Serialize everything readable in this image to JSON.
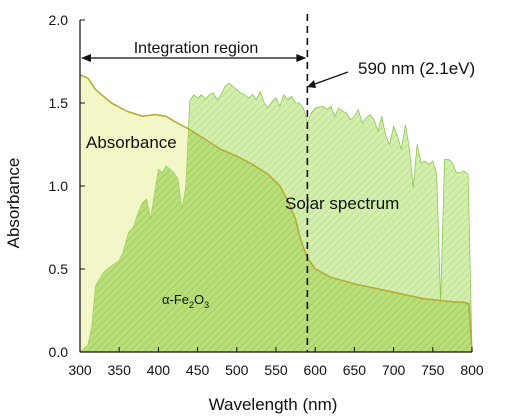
{
  "chart_data": {
    "type": "area",
    "xlabel": "Wavelength (nm)",
    "ylabel": "Absorbance",
    "xlim": [
      300,
      800
    ],
    "ylim": [
      0,
      2.0
    ],
    "x_ticks": [
      300,
      350,
      400,
      450,
      500,
      550,
      600,
      650,
      700,
      750,
      800
    ],
    "y_ticks": [
      0.0,
      0.5,
      1.0,
      1.5,
      2.0
    ],
    "y_tick_labels": [
      "0.0",
      "0.5",
      "1.0",
      "1.5",
      "2.0"
    ],
    "grid": false,
    "series": [
      {
        "name": "Absorbance",
        "fill": "#f3f6c6",
        "line": "#b5ad34",
        "x": [
          300,
          310,
          320,
          340,
          360,
          380,
          395,
          410,
          420,
          440,
          460,
          480,
          500,
          520,
          540,
          555,
          565,
          575,
          580,
          585,
          590,
          600,
          620,
          650,
          680,
          700,
          720,
          740,
          760,
          780,
          790,
          796,
          800
        ],
        "y": [
          1.67,
          1.65,
          1.58,
          1.5,
          1.45,
          1.42,
          1.43,
          1.42,
          1.39,
          1.34,
          1.28,
          1.22,
          1.18,
          1.13,
          1.07,
          1.0,
          0.91,
          0.8,
          0.7,
          0.63,
          0.57,
          0.5,
          0.45,
          0.41,
          0.38,
          0.36,
          0.34,
          0.32,
          0.31,
          0.3,
          0.3,
          0.29,
          0.0
        ]
      },
      {
        "name": "Solar spectrum",
        "fill": "#cdeba0",
        "line": "#8cc850",
        "x": [
          300,
          305,
          310,
          315,
          320,
          330,
          335,
          350,
          355,
          362,
          368,
          375,
          380,
          385,
          390,
          400,
          405,
          410,
          420,
          425,
          430,
          435,
          440,
          445,
          450,
          455,
          460,
          465,
          470,
          475,
          480,
          485,
          490,
          500,
          505,
          510,
          515,
          520,
          525,
          530,
          535,
          540,
          545,
          550,
          555,
          560,
          565,
          570,
          575,
          580,
          585,
          590,
          595,
          600,
          610,
          615,
          620,
          625,
          630,
          635,
          640,
          645,
          650,
          655,
          660,
          665,
          670,
          675,
          680,
          685,
          690,
          695,
          700,
          705,
          710,
          715,
          720,
          725,
          730,
          735,
          740,
          745,
          750,
          755,
          760,
          765,
          770,
          775,
          780,
          785,
          790,
          795,
          800
        ],
        "y": [
          0.0,
          0.02,
          0.04,
          0.15,
          0.4,
          0.48,
          0.5,
          0.55,
          0.6,
          0.72,
          0.75,
          0.85,
          0.9,
          0.92,
          0.8,
          1.1,
          1.08,
          1.12,
          1.08,
          1.04,
          0.86,
          0.99,
          1.51,
          1.55,
          1.53,
          1.55,
          1.52,
          1.55,
          1.56,
          1.52,
          1.55,
          1.6,
          1.62,
          1.58,
          1.56,
          1.55,
          1.53,
          1.55,
          1.52,
          1.57,
          1.5,
          1.47,
          1.51,
          1.53,
          1.48,
          1.55,
          1.52,
          1.54,
          1.5,
          1.5,
          1.47,
          1.38,
          1.44,
          1.47,
          1.48,
          1.46,
          1.48,
          1.42,
          1.47,
          1.45,
          1.44,
          1.4,
          1.42,
          1.46,
          1.38,
          1.41,
          1.43,
          1.4,
          1.33,
          1.42,
          1.3,
          1.25,
          1.36,
          1.3,
          1.22,
          1.37,
          1.23,
          0.99,
          1.25,
          1.14,
          1.15,
          1.13,
          1.15,
          1.07,
          0.3,
          1.16,
          1.16,
          1.14,
          1.08,
          1.08,
          1.09,
          1.07,
          0.0
        ]
      }
    ],
    "annotations": {
      "integration_region": "Integration region",
      "cutoff_label": "590 nm (2.1eV)",
      "cutoff_x": 590,
      "absorbance_label": "Absorbance",
      "solar_label": "Solar spectrum",
      "material_prefix": "α-Fe",
      "material_sub1": "2",
      "material_mid": "O",
      "material_sub2": "3"
    }
  }
}
